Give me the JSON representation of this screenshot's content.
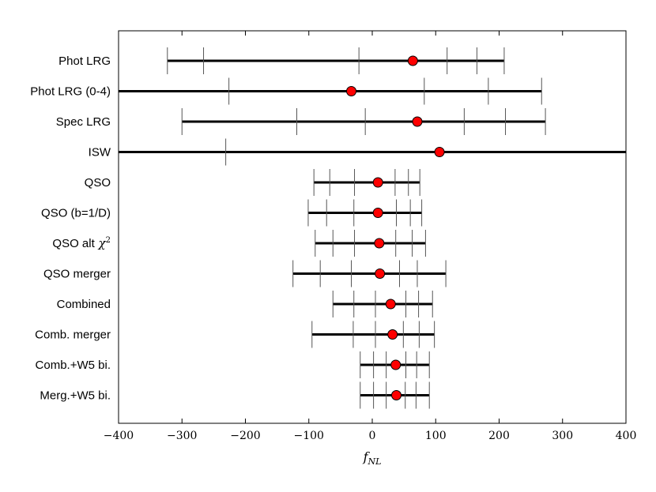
{
  "chart_data": {
    "type": "errorbar",
    "xlabel": "f",
    "xlabel_sub": "NL",
    "xlim": [
      -400,
      400
    ],
    "xticks": [
      -400,
      -300,
      -200,
      -100,
      0,
      100,
      200,
      300,
      400
    ],
    "xtick_labels": [
      "−400",
      "−300",
      "−200",
      "−100",
      "0",
      "100",
      "200",
      "300",
      "400"
    ],
    "marker_color": "#ff0000",
    "rows": [
      {
        "label": "Phot LRG",
        "center": 64,
        "line": [
          -323,
          208
        ],
        "ticks": [
          -266,
          -21,
          118,
          165
        ]
      },
      {
        "label": "Phot LRG (0-4)",
        "center": -33,
        "line": [
          -400,
          267
        ],
        "ticks": [
          -226,
          82,
          183
        ]
      },
      {
        "label": "Spec LRG",
        "center": 71,
        "line": [
          -300,
          273
        ],
        "ticks": [
          -119,
          -11,
          145,
          210
        ]
      },
      {
        "label": "ISW",
        "center": 106,
        "line": [
          -400,
          400
        ],
        "ticks": [
          -231
        ]
      },
      {
        "label": "QSO",
        "center": 9,
        "line": [
          -92,
          75
        ],
        "ticks": [
          -67,
          -28,
          36,
          57
        ]
      },
      {
        "label": "QSO (b=1/D)",
        "center": 9,
        "line": [
          -101,
          78
        ],
        "ticks": [
          -72,
          -29,
          38,
          60
        ]
      },
      {
        "label": "QSO alt",
        "label_math": "χ",
        "label_sup": "2",
        "center": 11,
        "line": [
          -90,
          84
        ],
        "ticks": [
          -62,
          -28,
          37,
          63
        ]
      },
      {
        "label": "QSO merger",
        "center": 12,
        "line": [
          -125,
          116
        ],
        "ticks": [
          -82,
          -33,
          43,
          71
        ]
      },
      {
        "label": "Combined",
        "center": 29,
        "line": [
          -62,
          95
        ],
        "ticks": [
          -29,
          5,
          53,
          73
        ]
      },
      {
        "label": "Comb. merger",
        "center": 32,
        "line": [
          -95,
          98
        ],
        "ticks": [
          -30,
          5,
          49,
          74
        ]
      },
      {
        "label": "Comb.+W5 bi.",
        "center": 37,
        "line": [
          -19,
          90
        ],
        "ticks": [
          2,
          22,
          53,
          70
        ]
      },
      {
        "label": "Merg.+W5 bi.",
        "center": 38,
        "line": [
          -19,
          90
        ],
        "ticks": [
          2,
          22,
          52,
          69
        ]
      }
    ]
  }
}
